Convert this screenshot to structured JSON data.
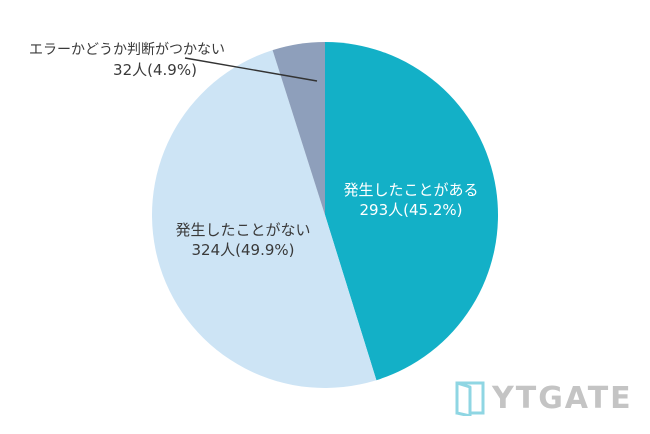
{
  "chart_data": {
    "type": "pie",
    "title": "",
    "start_angle_deg": 0,
    "direction": "clockwise",
    "slices": [
      {
        "label": "発生したことがある",
        "count": 293,
        "count_label": "293人(45.2%)",
        "percent": 45.2,
        "color": "#13b0c7"
      },
      {
        "label": "発生したことがない",
        "count": 324,
        "count_label": "324人(49.9%)",
        "percent": 49.9,
        "color": "#cde4f5"
      },
      {
        "label": "エラーかどうか判断がつかない",
        "count": 32,
        "count_label": "32人(4.9%)",
        "percent": 4.9,
        "color": "#8e9fbb"
      }
    ],
    "legend": "none",
    "labels_position": "inside except smallest slice (external with leader line)"
  },
  "labels": {
    "occurred": {
      "line1": "発生したことがある",
      "line2": "293人(45.2%)"
    },
    "not_occurred": {
      "line1": "発生したことがない",
      "line2": "324人(49.9%)"
    },
    "unknown": {
      "line1": "エラーかどうか判断がつかない",
      "line2": "32人(4.9%)"
    }
  },
  "logo": {
    "text": "YTGATE",
    "icon": "door-icon",
    "icon_color": "#8fd6e3",
    "text_color": "#c4c4c4"
  },
  "colors": {
    "occurred": "#13b0c7",
    "not_occurred": "#cde4f5",
    "unknown": "#8e9fbb",
    "leader_line": "#333333"
  }
}
